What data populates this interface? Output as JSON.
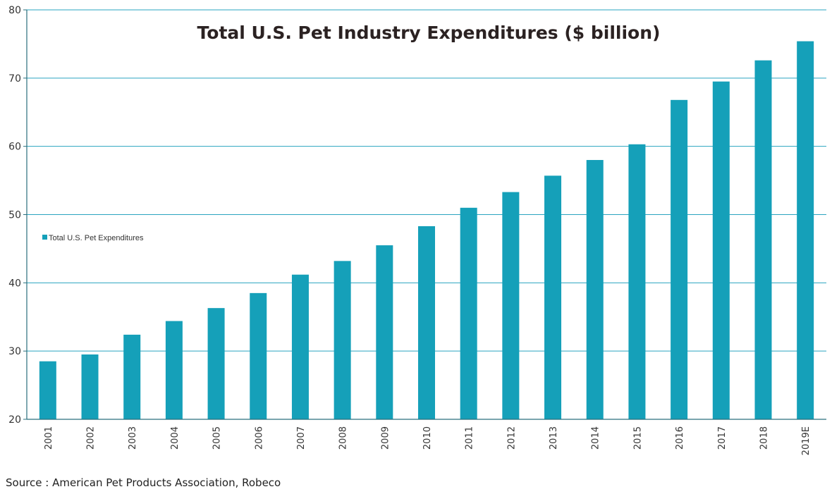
{
  "chart_data": {
    "type": "bar",
    "title": "Total U.S. Pet Industry Expenditures ($ billion)",
    "xlabel": "",
    "ylabel": "",
    "categories": [
      "2001",
      "2002",
      "2003",
      "2004",
      "2005",
      "2006",
      "2007",
      "2008",
      "2009",
      "2010",
      "2011",
      "2012",
      "2013",
      "2014",
      "2015",
      "2016",
      "2017",
      "2018",
      "2019E"
    ],
    "series": [
      {
        "name": "Total U.S. Pet Expenditures",
        "values": [
          28.5,
          29.5,
          32.4,
          34.4,
          36.3,
          38.5,
          41.2,
          43.2,
          45.5,
          48.3,
          51.0,
          53.3,
          55.7,
          58.0,
          60.3,
          66.8,
          69.5,
          72.6,
          75.4
        ]
      }
    ],
    "ylim": [
      20,
      80
    ],
    "yticks": [
      20,
      30,
      40,
      50,
      60,
      70,
      80
    ],
    "grid": true,
    "legend_position": "left",
    "color": "#15a0b9"
  },
  "source": "Source : American Pet Products Association, Robeco"
}
